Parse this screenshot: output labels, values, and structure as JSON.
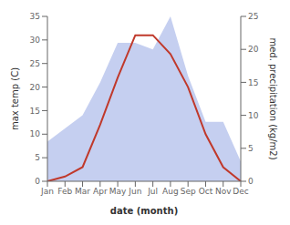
{
  "chart_data": {
    "type": "line",
    "categories": [
      "Jan",
      "Feb",
      "Mar",
      "Apr",
      "May",
      "Jun",
      "Jul",
      "Aug",
      "Sep",
      "Oct",
      "Nov",
      "Dec"
    ],
    "series": [
      {
        "type": "area",
        "color": "#c5cff0",
        "axis": "y2",
        "values": [
          6,
          8,
          10,
          15,
          21,
          21,
          20,
          25,
          16,
          9,
          9,
          3
        ]
      },
      {
        "type": "line",
        "color": "#c0392b",
        "values": [
          0,
          1,
          3,
          12,
          22,
          31,
          31,
          27,
          20,
          10,
          3,
          0
        ]
      }
    ],
    "xlabel": "date (month)",
    "ylabel": "max temp (C)",
    "y2label": "med. precipitation (kg/m2)",
    "ylim": [
      0,
      35
    ],
    "yticks": [
      0,
      5,
      10,
      15,
      20,
      25,
      30,
      35
    ],
    "y2lim": [
      0,
      25
    ],
    "y2ticks": [
      0,
      5,
      10,
      15,
      20,
      25
    ],
    "grid": false
  }
}
